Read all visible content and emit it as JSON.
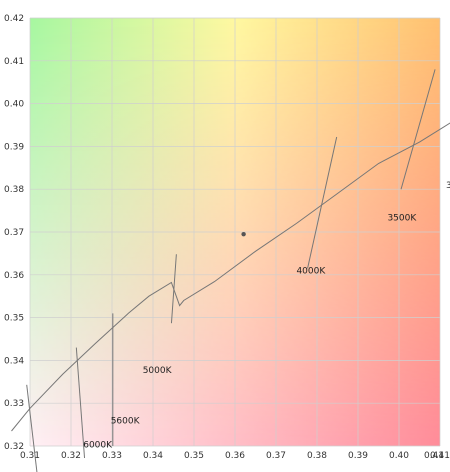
{
  "chart_data": {
    "type": "line",
    "title": "",
    "xlabel": "",
    "ylabel": "",
    "xlim": [
      0.31,
      0.41
    ],
    "ylim": [
      0.32,
      0.42
    ],
    "x_ticks": [
      "0.31",
      "0.32",
      "0.33",
      "0.34",
      "0.35",
      "0.36",
      "0.37",
      "0.38",
      "0.39",
      "0.40",
      "0.41"
    ],
    "y_ticks": [
      "0.32",
      "0.33",
      "0.34",
      "0.35",
      "0.36",
      "0.37",
      "0.38",
      "0.39",
      "0.40",
      "0.41",
      "0.42"
    ],
    "extra_x_tick": "0.41",
    "grid": true,
    "background_colors": {
      "top_left": "#a6f7a0",
      "top_mid": "#fff8a0",
      "top_right": "#ffc070",
      "bottom_left": "#fff0f5",
      "bottom_right": "#ff8c9a"
    },
    "locus": {
      "x": [
        0.3055,
        0.31,
        0.318,
        0.326,
        0.334,
        0.339,
        0.3445,
        0.3465,
        0.3475,
        0.355,
        0.365,
        0.375,
        0.385,
        0.395,
        0.405,
        0.4125
      ],
      "y": [
        0.3235,
        0.3288,
        0.3368,
        0.344,
        0.351,
        0.355,
        0.3582,
        0.3528,
        0.354,
        0.3584,
        0.3655,
        0.372,
        0.379,
        0.386,
        0.391,
        0.3955
      ]
    },
    "isotherms": [
      {
        "label": "6000K",
        "x": [
          0.3213,
          0.3233
        ],
        "y": [
          0.343,
          0.3172
        ]
      },
      {
        "label": "5600K",
        "x": [
          0.3302,
          0.3302
        ],
        "y": [
          0.351,
          0.32
        ]
      },
      {
        "label": "5000K",
        "x": [
          0.3445,
          0.3457
        ],
        "y": [
          0.3487,
          0.3648
        ]
      },
      {
        "label": "4000K",
        "x": [
          0.3777,
          0.3848
        ],
        "y": [
          0.3615,
          0.3922
        ]
      },
      {
        "label": "3500K",
        "x": [
          0.4005,
          0.4088
        ],
        "y": [
          0.38,
          0.408
        ]
      },
      {
        "label": "",
        "x": [
          0.3092,
          0.3118
        ],
        "y": [
          0.3343,
          0.313
        ]
      }
    ],
    "isotherm_labels": [
      {
        "text": "6000K",
        "x": 0.3265,
        "y": 0.3196
      },
      {
        "text": "5600K",
        "x": 0.3332,
        "y": 0.3252
      },
      {
        "text": "5000K",
        "x": 0.341,
        "y": 0.337
      },
      {
        "text": "4000K",
        "x": 0.3785,
        "y": 0.3603
      },
      {
        "text": "3500K",
        "x": 0.4007,
        "y": 0.3727
      }
    ],
    "points": [
      {
        "x": 0.3621,
        "y": 0.3695
      }
    ],
    "edge_text": "3"
  }
}
